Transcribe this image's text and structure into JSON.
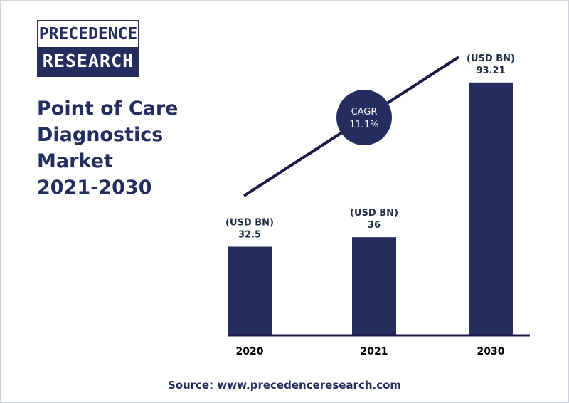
{
  "brand": {
    "logo_top": "PRECEDENCE",
    "logo_bottom": "RESEARCH"
  },
  "title_lines": [
    "Point of Care",
    "Diagnostics",
    "Market",
    "2021-2030"
  ],
  "source": "Source: www.precedenceresearch.com",
  "colors": {
    "navy": "#252d5f",
    "line": "#1d1545",
    "label": "#1f2d44"
  },
  "chart_data": {
    "type": "bar",
    "categories": [
      "2020",
      "2021",
      "2030"
    ],
    "values": [
      32.5,
      36,
      93.21
    ],
    "value_labels": [
      "32.5",
      "36",
      "93.21"
    ],
    "unit_label": "(USD BN)",
    "cagr": {
      "label": "CAGR",
      "value": "11.1%"
    },
    "ylim": [
      0,
      100
    ],
    "grid": false,
    "legend": "none"
  }
}
